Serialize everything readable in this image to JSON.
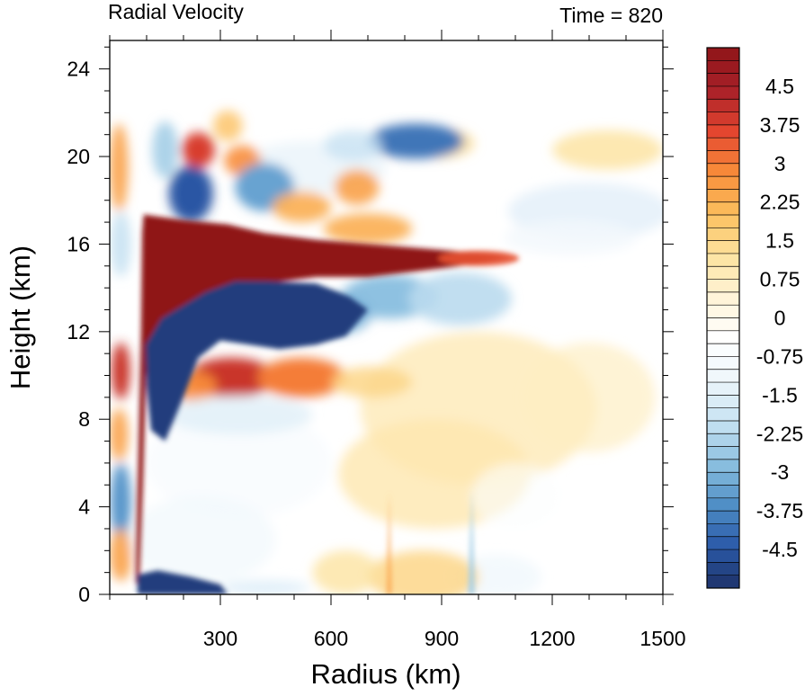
{
  "chart_data": {
    "type": "heatmap",
    "title": "Radial Velocity",
    "right_title": "Time = 820",
    "xlabel": "Radius (km)",
    "ylabel": "Height (km)",
    "xlim": [
      0,
      1500
    ],
    "ylim": [
      0,
      25.3
    ],
    "x_ticks": [
      300,
      600,
      900,
      1200,
      1500
    ],
    "y_ticks": [
      0,
      4,
      8,
      12,
      16,
      20,
      24
    ],
    "colorbar": {
      "min": -5.25,
      "max": 5.25,
      "interval": 0.25,
      "labels": [
        "4.5",
        "3.75",
        "3",
        "2.25",
        "1.5",
        "0.75",
        "0",
        "-0.75",
        "-1.5",
        "-2.25",
        "-3",
        "-3.75",
        "-4.5"
      ],
      "label_values": [
        4.5,
        3.75,
        3,
        2.25,
        1.5,
        0.75,
        0,
        -0.75,
        -1.5,
        -2.25,
        -3,
        -3.75,
        -4.5
      ],
      "colors_low_to_high": [
        "#1e3269",
        "#2b5aa8",
        "#4f8ec6",
        "#8cc0e0",
        "#c7e2f2",
        "#eef6fb",
        "#ffffff",
        "#fff4d8",
        "#fde3a0",
        "#fcc05e",
        "#f88c3a",
        "#e4452f",
        "#a82028",
        "#8f1519"
      ]
    },
    "features": [
      {
        "kind": "outflow",
        "r0": 90,
        "r1": 1080,
        "z_center": 15.3,
        "peak": 5.25
      },
      {
        "kind": "inflow_below_outflow",
        "r0": 110,
        "r1": 700,
        "z_center": 11.8,
        "peak": -5
      },
      {
        "kind": "inflow_boundary_layer",
        "r0": 70,
        "r1": 300,
        "z_center": 0.3,
        "peak": -5
      },
      {
        "kind": "eyewall_updraft_edge",
        "r_bottom": 75,
        "r_top": 105,
        "z_top": 17.3,
        "peak": 5.25
      },
      {
        "kind": "mid_level_outflow",
        "r0": 200,
        "r1": 700,
        "z_center": 9.7,
        "peak": 3
      }
    ]
  }
}
